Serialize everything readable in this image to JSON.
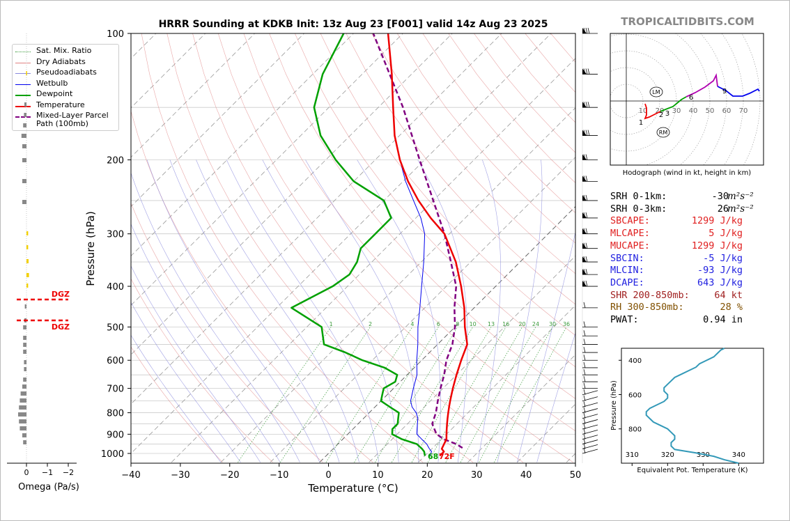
{
  "title": "HRRR Sounding at KDKB Init: 13z Aug 23 [F001] valid 14z Aug 23 2025",
  "watermark": "TROPICALTIDBITS.COM",
  "chart_data": [
    {
      "type": "skewt",
      "xlabel": "Temperature (°C)",
      "ylabel": "Pressure (hPa)",
      "xlim": [
        -40,
        50
      ],
      "ylim": [
        1050,
        100
      ],
      "xticks": [
        "−40",
        "−30",
        "−20",
        "−10",
        "0",
        "10",
        "20",
        "30",
        "40",
        "50"
      ],
      "yticks": [
        "100",
        "200",
        "300",
        "400",
        "500",
        "600",
        "700",
        "800",
        "900",
        "1000"
      ],
      "surface_label_dew": "68",
      "surface_label_temp": "72F",
      "mixing_ratio_labels": [
        "1",
        "2",
        "4",
        "6",
        "8",
        "10",
        "13",
        "16",
        "20",
        "24",
        "30",
        "36"
      ],
      "legend": [
        {
          "label": "Sat. Mix. Ratio",
          "color": "#3a9a3a",
          "style": "dotted"
        },
        {
          "label": "Dry Adiabats",
          "color": "#e08080",
          "style": "solid"
        },
        {
          "label": "Pseudoadiabats",
          "color": "#8888dd",
          "style": "solid"
        },
        {
          "label": "Wetbulb",
          "color": "#0000ee",
          "style": "solid"
        },
        {
          "label": "Dewpoint",
          "color": "#00a000",
          "style": "solid"
        },
        {
          "label": "Temperature",
          "color": "#ee0000",
          "style": "solid"
        },
        {
          "label": "Mixed-Layer Parcel Path (100mb)",
          "color": "#800080",
          "style": "dashed"
        }
      ],
      "temperature": [
        [
          1013,
          23
        ],
        [
          990,
          23
        ],
        [
          975,
          22
        ],
        [
          950,
          21.5
        ],
        [
          925,
          21
        ],
        [
          900,
          20
        ],
        [
          875,
          19
        ],
        [
          850,
          18
        ],
        [
          825,
          17
        ],
        [
          800,
          16
        ],
        [
          775,
          15
        ],
        [
          750,
          14
        ],
        [
          700,
          12
        ],
        [
          650,
          10
        ],
        [
          600,
          8
        ],
        [
          550,
          6
        ],
        [
          500,
          2
        ],
        [
          450,
          -2
        ],
        [
          400,
          -7
        ],
        [
          350,
          -13
        ],
        [
          300,
          -21
        ],
        [
          275,
          -27
        ],
        [
          250,
          -33
        ],
        [
          225,
          -39
        ],
        [
          200,
          -45
        ],
        [
          175,
          -51
        ],
        [
          150,
          -57
        ],
        [
          125,
          -64
        ],
        [
          100,
          -73
        ]
      ],
      "dewpoint": [
        [
          1013,
          20
        ],
        [
          990,
          19
        ],
        [
          975,
          18
        ],
        [
          950,
          16
        ],
        [
          925,
          12
        ],
        [
          900,
          9
        ],
        [
          875,
          8
        ],
        [
          850,
          8
        ],
        [
          825,
          7
        ],
        [
          800,
          6
        ],
        [
          775,
          3
        ],
        [
          750,
          0
        ],
        [
          725,
          -1
        ],
        [
          700,
          -2
        ],
        [
          675,
          -1
        ],
        [
          650,
          -2
        ],
        [
          625,
          -6
        ],
        [
          600,
          -12
        ],
        [
          575,
          -17
        ],
        [
          550,
          -23
        ],
        [
          500,
          -27
        ],
        [
          450,
          -37
        ],
        [
          400,
          -33
        ],
        [
          375,
          -32
        ],
        [
          350,
          -33
        ],
        [
          325,
          -35
        ],
        [
          300,
          -35
        ],
        [
          275,
          -35
        ],
        [
          250,
          -40
        ],
        [
          225,
          -50
        ],
        [
          200,
          -58
        ],
        [
          175,
          -66
        ],
        [
          150,
          -73
        ],
        [
          125,
          -78
        ],
        [
          100,
          -82
        ]
      ],
      "wetbulb": [
        [
          1013,
          21
        ],
        [
          990,
          20.5
        ],
        [
          975,
          19.5
        ],
        [
          950,
          18
        ],
        [
          925,
          16
        ],
        [
          900,
          14
        ],
        [
          875,
          13
        ],
        [
          850,
          12
        ],
        [
          825,
          11
        ],
        [
          800,
          9.5
        ],
        [
          775,
          7.5
        ],
        [
          750,
          6
        ],
        [
          700,
          4
        ],
        [
          650,
          2
        ],
        [
          600,
          -1
        ],
        [
          550,
          -4
        ],
        [
          500,
          -7.5
        ],
        [
          450,
          -11
        ],
        [
          400,
          -15
        ],
        [
          350,
          -19.5
        ],
        [
          300,
          -25
        ],
        [
          275,
          -29
        ],
        [
          250,
          -34
        ],
        [
          225,
          -39.5
        ],
        [
          200,
          -45
        ],
        [
          175,
          -51
        ],
        [
          150,
          -57
        ],
        [
          125,
          -64
        ],
        [
          100,
          -73
        ]
      ],
      "parcel": [
        [
          970,
          26
        ],
        [
          950,
          24
        ],
        [
          925,
          20.5
        ],
        [
          900,
          18
        ],
        [
          875,
          16.5
        ],
        [
          850,
          15
        ],
        [
          800,
          13.5
        ],
        [
          750,
          11.5
        ],
        [
          700,
          9.5
        ],
        [
          650,
          7.5
        ],
        [
          600,
          5
        ],
        [
          550,
          3
        ],
        [
          500,
          0
        ],
        [
          450,
          -4
        ],
        [
          400,
          -8
        ],
        [
          350,
          -14
        ],
        [
          300,
          -21
        ],
        [
          250,
          -30
        ],
        [
          200,
          -41
        ],
        [
          150,
          -55
        ],
        [
          100,
          -76
        ]
      ],
      "wind_barb_levels": [
        1000,
        975,
        950,
        925,
        900,
        875,
        850,
        825,
        800,
        775,
        750,
        725,
        700,
        675,
        650,
        625,
        600,
        575,
        550,
        525,
        500,
        450,
        400,
        375,
        350,
        325,
        300,
        275,
        250,
        225,
        200,
        175,
        150,
        125,
        100
      ]
    },
    {
      "type": "line",
      "name": "omega",
      "xlabel": "Omega (Pa/s)",
      "xticks": [
        "0",
        "−1",
        "−2"
      ],
      "dgz_label": "DGZ"
    },
    {
      "type": "hodograph",
      "caption": "Hodograph (wind in kt, height in km)",
      "ring_labels": [
        "10",
        "20",
        "30",
        "40",
        "50",
        "60",
        "70"
      ],
      "height_labels": [
        "1",
        "2",
        "3",
        "6",
        "9"
      ],
      "markers": [
        "LM",
        "RM"
      ],
      "u_v_kt": [
        [
          10,
          -12
        ],
        [
          15,
          -10
        ],
        [
          16,
          -8
        ],
        [
          14,
          -5
        ],
        [
          12,
          -2
        ],
        [
          10,
          2
        ],
        [
          9,
          4
        ]
      ]
    },
    {
      "type": "line",
      "name": "theta-e",
      "xlabel": "Equivalent Pot. Temperature (K)",
      "ylabel": "Pressure (hPa)",
      "xticks": [
        "310",
        "320",
        "330",
        "340"
      ],
      "yticks": [
        "400",
        "600",
        "800"
      ],
      "xlim": [
        307,
        347
      ],
      "ylim": [
        1000,
        330
      ],
      "profile": [
        [
          340,
          1000
        ],
        [
          336,
          980
        ],
        [
          333,
          960
        ],
        [
          328,
          940
        ],
        [
          322,
          920
        ],
        [
          321,
          900
        ],
        [
          321,
          880
        ],
        [
          322,
          860
        ],
        [
          322,
          840
        ],
        [
          321,
          820
        ],
        [
          320,
          800
        ],
        [
          318,
          780
        ],
        [
          316,
          760
        ],
        [
          315,
          740
        ],
        [
          314,
          720
        ],
        [
          314,
          700
        ],
        [
          315,
          680
        ],
        [
          317,
          660
        ],
        [
          319,
          640
        ],
        [
          320,
          620
        ],
        [
          320,
          600
        ],
        [
          319,
          580
        ],
        [
          319,
          560
        ],
        [
          320,
          540
        ],
        [
          321,
          520
        ],
        [
          322,
          500
        ],
        [
          324,
          480
        ],
        [
          326,
          460
        ],
        [
          328,
          440
        ],
        [
          329,
          420
        ],
        [
          331,
          400
        ],
        [
          333,
          380
        ],
        [
          334,
          360
        ],
        [
          335,
          340
        ],
        [
          336,
          330
        ]
      ]
    }
  ],
  "indices": [
    {
      "label": "SRH 0-1km:",
      "value": "-30",
      "unit": "m²s⁻²",
      "color": "#000000"
    },
    {
      "label": "SRH 0-3km:",
      "value": "26",
      "unit": "m²s⁻²",
      "color": "#000000"
    },
    {
      "label": "SBCAPE:",
      "value": "1299 J/kg",
      "unit": "",
      "color": "#e02020"
    },
    {
      "label": "MLCAPE:",
      "value": "5 J/kg",
      "unit": "",
      "color": "#e02020"
    },
    {
      "label": "MUCAPE:",
      "value": "1299 J/kg",
      "unit": "",
      "color": "#e02020"
    },
    {
      "label": "SBCIN:",
      "value": "-5 J/kg",
      "unit": "",
      "color": "#2020e0"
    },
    {
      "label": "MLCIN:",
      "value": "-93 J/kg",
      "unit": "",
      "color": "#2020e0"
    },
    {
      "label": "DCAPE:",
      "value": "643 J/kg",
      "unit": "",
      "color": "#2020e0"
    },
    {
      "label": "SHR 200-850mb:",
      "value": "64 kt",
      "unit": "",
      "color": "#a02020"
    },
    {
      "label": "RH 300-850mb:",
      "value": "28 %",
      "unit": "",
      "color": "#805000"
    },
    {
      "label": "PWAT:",
      "value": "0.94 in",
      "unit": "",
      "color": "#000000"
    }
  ]
}
